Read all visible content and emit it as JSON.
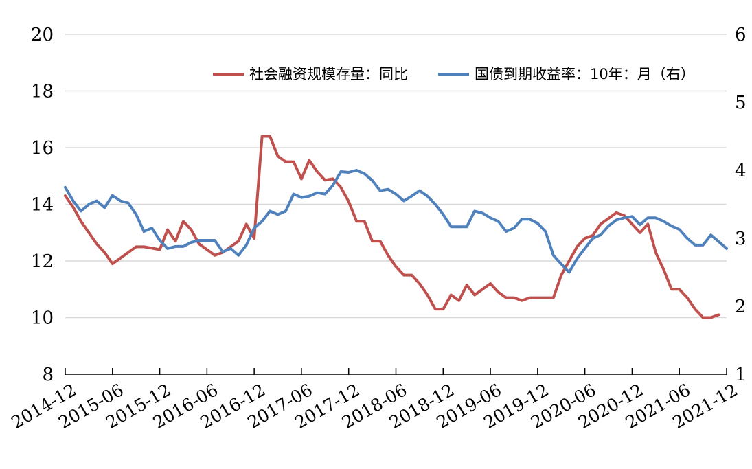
{
  "chart_data": {
    "type": "line",
    "title": "",
    "xlabel": "",
    "ylabel": "",
    "y_left": {
      "min": 8,
      "max": 20,
      "ticks": [
        "8",
        "10",
        "12",
        "14",
        "16",
        "18",
        "20"
      ]
    },
    "y_right": {
      "min": 1,
      "max": 6,
      "ticks": [
        "1",
        "2",
        "3",
        "4",
        "5",
        "6"
      ]
    },
    "x_tick_labels": [
      "2014-12",
      "2015-06",
      "2015-12",
      "2016-06",
      "2016-12",
      "2017-06",
      "2017-12",
      "2018-06",
      "2018-12",
      "2019-06",
      "2019-12",
      "2020-06",
      "2020-12",
      "2021-06",
      "2021-12"
    ],
    "grid": "horizontal",
    "legend_position": "top-right",
    "series": [
      {
        "name": "社会融资规模存量：同比",
        "axis": "left",
        "color": "#c0504d",
        "points": [
          [
            0,
            14.3
          ],
          [
            1,
            13.9
          ],
          [
            2,
            13.4
          ],
          [
            3,
            13.0
          ],
          [
            4,
            12.6
          ],
          [
            5,
            12.3
          ],
          [
            6,
            11.9
          ],
          [
            7,
            12.1
          ],
          [
            8,
            12.3
          ],
          [
            9,
            12.5
          ],
          [
            10,
            12.5
          ],
          [
            11,
            12.45
          ],
          [
            12,
            12.4
          ],
          [
            13,
            13.1
          ],
          [
            14,
            12.7
          ],
          [
            15,
            13.4
          ],
          [
            16,
            13.1
          ],
          [
            17,
            12.6
          ],
          [
            18,
            12.4
          ],
          [
            19,
            12.2
          ],
          [
            20,
            12.3
          ],
          [
            21,
            12.5
          ],
          [
            22,
            12.7
          ],
          [
            23,
            13.3
          ],
          [
            24,
            12.8
          ],
          [
            25,
            16.4
          ],
          [
            26,
            16.4
          ],
          [
            27,
            15.7
          ],
          [
            28,
            15.5
          ],
          [
            29,
            15.5
          ],
          [
            30,
            14.9
          ],
          [
            31,
            15.55
          ],
          [
            32,
            15.15
          ],
          [
            33,
            14.85
          ],
          [
            34,
            14.9
          ],
          [
            35,
            14.6
          ],
          [
            36,
            14.1
          ],
          [
            37,
            13.4
          ],
          [
            38,
            13.4
          ],
          [
            39,
            12.7
          ],
          [
            40,
            12.7
          ],
          [
            41,
            12.2
          ],
          [
            42,
            11.8
          ],
          [
            43,
            11.5
          ],
          [
            44,
            11.5
          ],
          [
            45,
            11.2
          ],
          [
            46,
            10.8
          ],
          [
            47,
            10.3
          ],
          [
            48,
            10.3
          ],
          [
            49,
            10.8
          ],
          [
            50,
            10.6
          ],
          [
            51,
            11.15
          ],
          [
            52,
            10.8
          ],
          [
            53,
            11.0
          ],
          [
            54,
            11.2
          ],
          [
            55,
            10.9
          ],
          [
            56,
            10.7
          ],
          [
            57,
            10.7
          ],
          [
            58,
            10.6
          ],
          [
            59,
            10.7
          ],
          [
            60,
            10.7
          ],
          [
            61,
            10.7
          ],
          [
            62,
            10.7
          ],
          [
            63,
            11.5
          ],
          [
            64,
            12.0
          ],
          [
            65,
            12.5
          ],
          [
            66,
            12.8
          ],
          [
            67,
            12.9
          ],
          [
            68,
            13.3
          ],
          [
            69,
            13.5
          ],
          [
            70,
            13.7
          ],
          [
            71,
            13.6
          ],
          [
            72,
            13.3
          ],
          [
            73,
            13.0
          ],
          [
            74,
            13.3
          ],
          [
            75,
            12.3
          ],
          [
            76,
            11.7
          ],
          [
            77,
            11.0
          ],
          [
            78,
            11.0
          ],
          [
            79,
            10.7
          ],
          [
            80,
            10.3
          ],
          [
            81,
            10.0
          ],
          [
            82,
            10.0
          ],
          [
            83,
            10.1
          ]
        ]
      },
      {
        "name": "国债到期收益率：10年：月（右）",
        "axis": "right",
        "color": "#4f81bd",
        "points": [
          [
            0,
            3.75
          ],
          [
            1,
            3.55
          ],
          [
            2,
            3.4
          ],
          [
            3,
            3.5
          ],
          [
            4,
            3.55
          ],
          [
            5,
            3.45
          ],
          [
            6,
            3.63
          ],
          [
            7,
            3.55
          ],
          [
            8,
            3.52
          ],
          [
            9,
            3.35
          ],
          [
            10,
            3.1
          ],
          [
            11,
            3.15
          ],
          [
            12,
            2.97
          ],
          [
            13,
            2.85
          ],
          [
            14,
            2.88
          ],
          [
            15,
            2.88
          ],
          [
            16,
            2.94
          ],
          [
            17,
            2.97
          ],
          [
            18,
            2.97
          ],
          [
            19,
            2.97
          ],
          [
            20,
            2.8
          ],
          [
            21,
            2.85
          ],
          [
            22,
            2.75
          ],
          [
            23,
            2.9
          ],
          [
            24,
            3.15
          ],
          [
            25,
            3.25
          ],
          [
            26,
            3.4
          ],
          [
            27,
            3.35
          ],
          [
            28,
            3.4
          ],
          [
            29,
            3.65
          ],
          [
            30,
            3.6
          ],
          [
            31,
            3.62
          ],
          [
            32,
            3.67
          ],
          [
            33,
            3.65
          ],
          [
            34,
            3.78
          ],
          [
            35,
            3.98
          ],
          [
            36,
            3.97
          ],
          [
            37,
            4.0
          ],
          [
            38,
            3.95
          ],
          [
            39,
            3.85
          ],
          [
            40,
            3.7
          ],
          [
            41,
            3.72
          ],
          [
            42,
            3.65
          ],
          [
            43,
            3.55
          ],
          [
            44,
            3.62
          ],
          [
            45,
            3.7
          ],
          [
            46,
            3.62
          ],
          [
            47,
            3.5
          ],
          [
            48,
            3.35
          ],
          [
            49,
            3.17
          ],
          [
            50,
            3.17
          ],
          [
            51,
            3.17
          ],
          [
            52,
            3.4
          ],
          [
            53,
            3.37
          ],
          [
            54,
            3.3
          ],
          [
            55,
            3.25
          ],
          [
            56,
            3.1
          ],
          [
            57,
            3.15
          ],
          [
            58,
            3.28
          ],
          [
            59,
            3.28
          ],
          [
            60,
            3.22
          ],
          [
            61,
            3.1
          ],
          [
            62,
            2.75
          ],
          [
            63,
            2.62
          ],
          [
            64,
            2.5
          ],
          [
            65,
            2.7
          ],
          [
            66,
            2.85
          ],
          [
            67,
            3.0
          ],
          [
            68,
            3.05
          ],
          [
            69,
            3.18
          ],
          [
            70,
            3.27
          ],
          [
            71,
            3.3
          ],
          [
            72,
            3.32
          ],
          [
            73,
            3.2
          ],
          [
            74,
            3.3
          ],
          [
            75,
            3.3
          ],
          [
            76,
            3.25
          ],
          [
            77,
            3.18
          ],
          [
            78,
            3.13
          ],
          [
            79,
            3.0
          ],
          [
            80,
            2.9
          ],
          [
            81,
            2.9
          ],
          [
            82,
            3.05
          ],
          [
            83,
            2.95
          ],
          [
            84,
            2.85
          ]
        ]
      }
    ]
  }
}
